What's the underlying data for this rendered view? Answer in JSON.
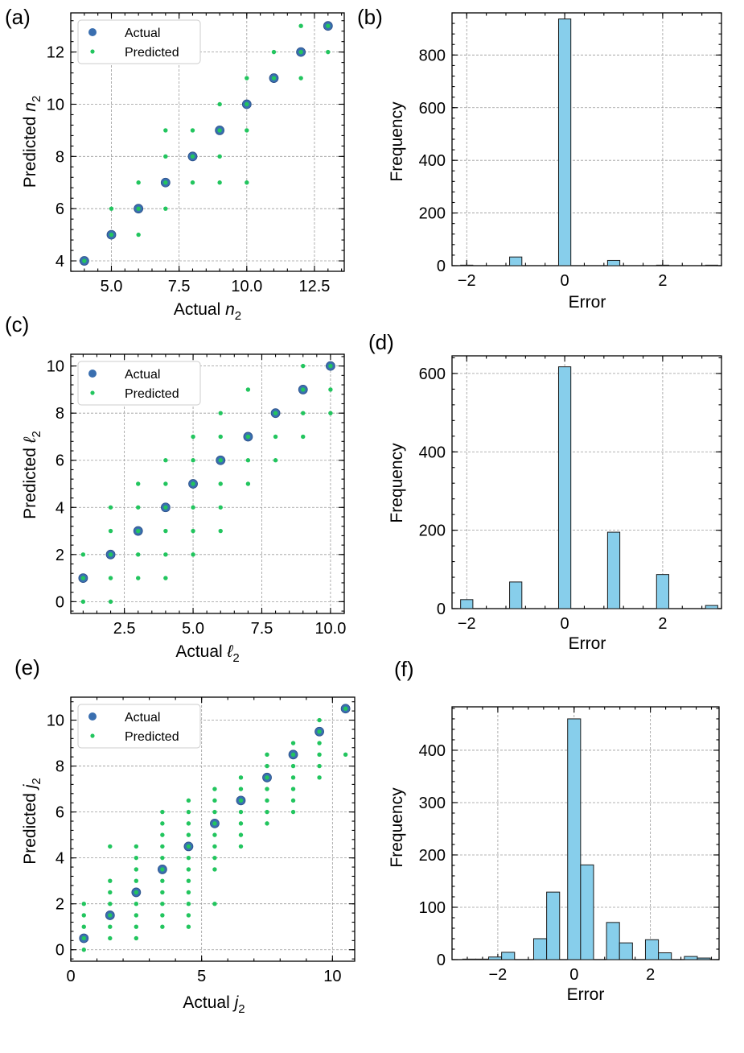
{
  "colors": {
    "actual": "#3a6fb0",
    "actual_edge": "#2a4f86",
    "predicted": "#22c55e",
    "bar": "#87ceeb",
    "bar_edge": "#1a1a1a"
  },
  "chart_data": [
    {
      "id": "a",
      "panel_label": "(a)",
      "type": "scatter",
      "xlabel": "Actual",
      "xlabel_sym": "n",
      "xlabel_sub": "2",
      "ylabel": "Predicted",
      "ylabel_sym": "n",
      "ylabel_sub": "2",
      "xlim": [
        3.5,
        13.6
      ],
      "ylim": [
        3.6,
        13.5
      ],
      "xticks": [
        5.0,
        7.5,
        10.0,
        12.5
      ],
      "xtick_labels": [
        "5.0",
        "7.5",
        "10.0",
        "12.5"
      ],
      "yticks": [
        4,
        6,
        8,
        10,
        12
      ],
      "ytick_labels": [
        "4",
        "6",
        "8",
        "10",
        "12"
      ],
      "legend": [
        "Actual",
        "Predicted"
      ],
      "actual": [
        4,
        5,
        6,
        7,
        8,
        9,
        10,
        11,
        12,
        13
      ],
      "predicted": [
        {
          "x": 4,
          "y": [
            4
          ]
        },
        {
          "x": 5,
          "y": [
            5,
            6
          ]
        },
        {
          "x": 6,
          "y": [
            5,
            6,
            7
          ]
        },
        {
          "x": 7,
          "y": [
            6,
            7,
            8,
            9
          ]
        },
        {
          "x": 8,
          "y": [
            7,
            8,
            9
          ]
        },
        {
          "x": 9,
          "y": [
            7,
            8,
            9,
            10
          ]
        },
        {
          "x": 10,
          "y": [
            7,
            9,
            10,
            11
          ]
        },
        {
          "x": 11,
          "y": [
            11,
            12
          ]
        },
        {
          "x": 12,
          "y": [
            11,
            12,
            13
          ]
        },
        {
          "x": 13,
          "y": [
            12,
            13
          ]
        }
      ]
    },
    {
      "id": "b",
      "panel_label": "(b)",
      "type": "bar",
      "xlabel": "Error",
      "ylabel": "Frequency",
      "xlim": [
        -2.3,
        3.2
      ],
      "ylim": [
        0,
        960
      ],
      "xticks": [
        -2,
        0,
        2
      ],
      "xtick_labels": [
        "−2",
        "0",
        "2"
      ],
      "yticks": [
        0,
        200,
        400,
        600,
        800
      ],
      "ytick_labels": [
        "0",
        "200",
        "400",
        "600",
        "800"
      ],
      "bar_width": 0.25,
      "bars": [
        {
          "x": -2,
          "v": 2
        },
        {
          "x": -1,
          "v": 33
        },
        {
          "x": 0,
          "v": 937
        },
        {
          "x": 1,
          "v": 20
        },
        {
          "x": 2,
          "v": 2
        },
        {
          "x": 3,
          "v": 2
        }
      ]
    },
    {
      "id": "c",
      "panel_label": "(c)",
      "type": "scatter",
      "xlabel": "Actual",
      "xlabel_sym": "ℓ",
      "xlabel_sub": "2",
      "ylabel": "Predicted",
      "ylabel_sym": "ℓ",
      "ylabel_sub": "2",
      "xlim": [
        0.55,
        10.5
      ],
      "ylim": [
        -0.5,
        10.5
      ],
      "xticks": [
        2.5,
        5.0,
        7.5,
        10.0
      ],
      "xtick_labels": [
        "2.5",
        "5.0",
        "7.5",
        "10.0"
      ],
      "yticks": [
        0,
        2,
        4,
        6,
        8,
        10
      ],
      "ytick_labels": [
        "0",
        "2",
        "4",
        "6",
        "8",
        "10"
      ],
      "legend": [
        "Actual",
        "Predicted"
      ],
      "actual": [
        1,
        2,
        3,
        4,
        5,
        6,
        7,
        8,
        9,
        10
      ],
      "predicted": [
        {
          "x": 1,
          "y": [
            0,
            1,
            2
          ]
        },
        {
          "x": 2,
          "y": [
            0,
            1,
            2,
            3,
            4
          ]
        },
        {
          "x": 3,
          "y": [
            1,
            2,
            3,
            4,
            5
          ]
        },
        {
          "x": 4,
          "y": [
            1,
            2,
            3,
            4,
            5,
            6
          ]
        },
        {
          "x": 5,
          "y": [
            2,
            3,
            4,
            5,
            6,
            7
          ]
        },
        {
          "x": 6,
          "y": [
            3,
            4,
            5,
            6,
            7,
            8
          ]
        },
        {
          "x": 7,
          "y": [
            5,
            6,
            7,
            9
          ]
        },
        {
          "x": 8,
          "y": [
            6,
            7,
            8
          ]
        },
        {
          "x": 9,
          "y": [
            7,
            8,
            9,
            10
          ]
        },
        {
          "x": 10,
          "y": [
            8,
            9,
            10
          ]
        }
      ]
    },
    {
      "id": "d",
      "panel_label": "(d)",
      "type": "bar",
      "xlabel": "Error",
      "ylabel": "Frequency",
      "xlim": [
        -2.3,
        3.2
      ],
      "ylim": [
        0,
        645
      ],
      "xticks": [
        -2,
        0,
        2
      ],
      "xtick_labels": [
        "−2",
        "0",
        "2"
      ],
      "yticks": [
        0,
        200,
        400,
        600
      ],
      "ytick_labels": [
        "0",
        "200",
        "400",
        "600"
      ],
      "bar_width": 0.25,
      "bars": [
        {
          "x": -2,
          "v": 23
        },
        {
          "x": -1,
          "v": 68
        },
        {
          "x": 0,
          "v": 617
        },
        {
          "x": 1,
          "v": 195
        },
        {
          "x": 2,
          "v": 87
        },
        {
          "x": 3,
          "v": 8
        }
      ]
    },
    {
      "id": "e",
      "panel_label": "(e)",
      "type": "scatter",
      "xlabel": "Actual",
      "xlabel_sym": "j",
      "xlabel_sub": "2",
      "ylabel": "Predicted",
      "ylabel_sym": "j",
      "ylabel_sub": "2",
      "xlim": [
        0,
        10.85
      ],
      "ylim": [
        -0.5,
        11.0
      ],
      "xticks": [
        0,
        5,
        10
      ],
      "xtick_labels": [
        "0",
        "5",
        "10"
      ],
      "yticks": [
        0,
        2,
        4,
        6,
        8,
        10
      ],
      "ytick_labels": [
        "0",
        "2",
        "4",
        "6",
        "8",
        "10"
      ],
      "legend": [
        "Actual",
        "Predicted"
      ],
      "actual": [
        0.5,
        1.5,
        2.5,
        3.5,
        4.5,
        5.5,
        6.5,
        7.5,
        8.5,
        9.5,
        10.5
      ],
      "predicted": [
        {
          "x": 0.5,
          "y": [
            0,
            0.5,
            1,
            1.5,
            2
          ]
        },
        {
          "x": 1.5,
          "y": [
            0.5,
            1,
            1.5,
            2,
            2.5,
            3,
            4.5
          ]
        },
        {
          "x": 2.5,
          "y": [
            0.5,
            1,
            1.5,
            2,
            2.5,
            3,
            3.5,
            4,
            4.5
          ]
        },
        {
          "x": 3.5,
          "y": [
            1,
            1.5,
            2,
            2.5,
            3,
            3.5,
            4,
            4.5,
            5,
            5.5,
            6
          ]
        },
        {
          "x": 4.5,
          "y": [
            1,
            1.5,
            2,
            2.5,
            3,
            3.5,
            4,
            4.5,
            5,
            5.5,
            6,
            6.5
          ]
        },
        {
          "x": 5.5,
          "y": [
            2,
            3.5,
            4,
            4.5,
            5,
            5.5,
            6,
            6.5,
            7
          ]
        },
        {
          "x": 6.5,
          "y": [
            4.5,
            5,
            5.5,
            6,
            6.5,
            7,
            7.5
          ]
        },
        {
          "x": 7.5,
          "y": [
            5.5,
            6,
            6.5,
            7,
            7.5,
            8,
            8.5
          ]
        },
        {
          "x": 8.5,
          "y": [
            6,
            6.5,
            7,
            7.5,
            8,
            8.5,
            9
          ]
        },
        {
          "x": 9.5,
          "y": [
            7.5,
            8,
            8.5,
            9,
            9.5,
            10
          ]
        },
        {
          "x": 10.5,
          "y": [
            8.5,
            10.5
          ]
        }
      ]
    },
    {
      "id": "f",
      "panel_label": "(f)",
      "type": "bar",
      "xlabel": "Error",
      "ylabel": "Frequency",
      "xlim": [
        -3.2,
        3.8
      ],
      "ylim": [
        0,
        483
      ],
      "xticks": [
        -2,
        0,
        2
      ],
      "xtick_labels": [
        "−2",
        "0",
        "2"
      ],
      "yticks": [
        0,
        100,
        200,
        300,
        400
      ],
      "ytick_labels": [
        "0",
        "100",
        "200",
        "300",
        "400"
      ],
      "bar_width": 0.34,
      "bars": [
        {
          "x": -2.75,
          "v": 1
        },
        {
          "x": -2.41,
          "v": 1
        },
        {
          "x": -2.07,
          "v": 5
        },
        {
          "x": -1.73,
          "v": 14
        },
        {
          "x": -1.0,
          "v": 0
        },
        {
          "x": -0.89,
          "v": 40
        },
        {
          "x": -0.55,
          "v": 129
        },
        {
          "x": 0.0,
          "v": 460
        },
        {
          "x": 0.34,
          "v": 181
        },
        {
          "x": 1.02,
          "v": 71
        },
        {
          "x": 1.36,
          "v": 32
        },
        {
          "x": 2.04,
          "v": 38
        },
        {
          "x": 2.38,
          "v": 13
        },
        {
          "x": 3.06,
          "v": 6
        },
        {
          "x": 3.4,
          "v": 3
        }
      ]
    }
  ]
}
